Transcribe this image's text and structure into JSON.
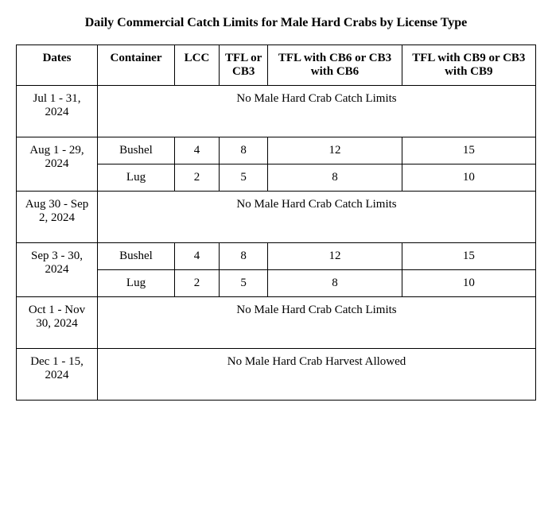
{
  "title": "Daily Commercial Catch Limits for Male Hard Crabs by License Type",
  "columns": {
    "dates": "Dates",
    "container": "Container",
    "lcc": "LCC",
    "tfl": "TFL or CB3",
    "cb6": "TFL with CB6 or  CB3 with CB6",
    "cb9": "TFL with CB9 or  CB3 with CB9"
  },
  "noLimitsText": "No Male Hard Crab Catch Limits",
  "noHarvestText": "No Male Hard Crab Harvest Allowed",
  "containerTypes": {
    "bushel": "Bushel",
    "lug": "Lug"
  },
  "periods": {
    "jul": "Jul 1 - 31, 2024",
    "aug": "Aug 1 - 29, 2024",
    "aug30": "Aug 30 - Sep  2, 2024",
    "sep": "Sep 3 - 30, 2024",
    "oct": "Oct 1 - Nov  30, 2024",
    "dec": "Dec 1 - 15, 2024"
  },
  "limits": {
    "bushel": {
      "lcc": "4",
      "tfl": "8",
      "cb6": "12",
      "cb9": "15"
    },
    "lug": {
      "lcc": "2",
      "tfl": "5",
      "cb6": "8",
      "cb9": "10"
    }
  },
  "style": {
    "font_family": "Times New Roman",
    "title_fontsize": 16,
    "cell_fontsize": 15,
    "border_color": "#000000",
    "background_color": "#ffffff",
    "text_color": "#000000"
  }
}
